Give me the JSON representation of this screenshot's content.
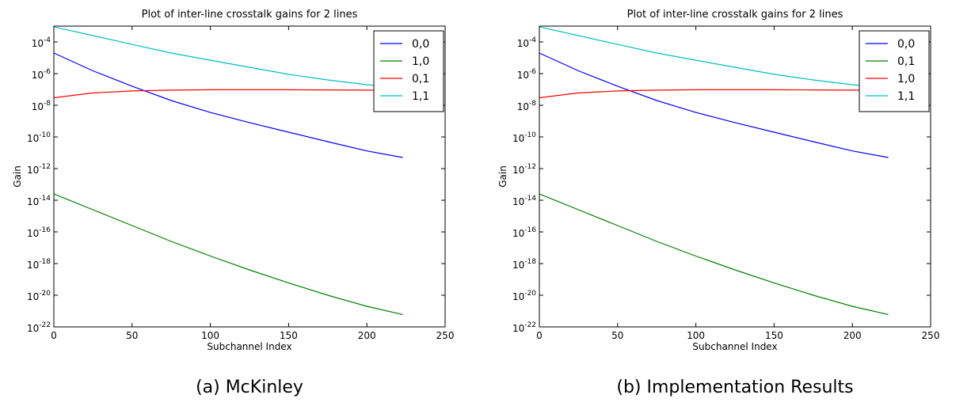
{
  "chart_data": [
    {
      "type": "line",
      "title": "Plot of inter-line crosstalk gains for 2 lines",
      "xlabel": "Subchannel Index",
      "ylabel": "Gain",
      "caption": "(a) McKinley",
      "xlim": [
        0,
        250
      ],
      "ylim": [
        1e-22,
        0.001
      ],
      "yscale": "log",
      "xticks": [
        0,
        50,
        100,
        150,
        200,
        250
      ],
      "yticks": [
        {
          "value": 0.0001,
          "base": "10",
          "exp": "-4"
        },
        {
          "value": 1e-06,
          "base": "10",
          "exp": "-6"
        },
        {
          "value": 1e-08,
          "base": "10",
          "exp": "-8"
        },
        {
          "value": 1e-10,
          "base": "10",
          "exp": "-10"
        },
        {
          "value": 1e-12,
          "base": "10",
          "exp": "-12"
        },
        {
          "value": 1e-14,
          "base": "10",
          "exp": "-14"
        },
        {
          "value": 1e-16,
          "base": "10",
          "exp": "-16"
        },
        {
          "value": 1e-18,
          "base": "10",
          "exp": "-18"
        },
        {
          "value": 1e-20,
          "base": "10",
          "exp": "-20"
        },
        {
          "value": 1e-22,
          "base": "10",
          "exp": "-22"
        }
      ],
      "legend": "top-right",
      "grid": false,
      "x": [
        0,
        25,
        50,
        75,
        100,
        125,
        150,
        175,
        200,
        223
      ],
      "series": [
        {
          "name": "0,0",
          "color": "#0000ff",
          "values": [
            2e-05,
            1.5e-06,
            1.6e-07,
            2e-08,
            3.5e-09,
            8e-10,
            2e-10,
            5e-11,
            1.3e-11,
            5e-12
          ]
        },
        {
          "name": "1,0",
          "color": "#008000",
          "values": [
            2.5e-14,
            2.5e-15,
            2.5e-16,
            2.5e-17,
            3e-18,
            4e-19,
            6e-20,
            1e-20,
            2e-21,
            6e-22
          ]
        },
        {
          "name": "0,1",
          "color": "#ff0000",
          "values": [
            3e-08,
            6e-08,
            8e-08,
            9e-08,
            9.5e-08,
            9.6e-08,
            9.5e-08,
            9.3e-08,
            9e-08,
            8.8e-08
          ]
        },
        {
          "name": "1,1",
          "color": "#00bfbf",
          "values": [
            0.0009,
            0.00025,
            7e-05,
            2e-05,
            7e-06,
            2.5e-06,
            9e-07,
            4e-07,
            2e-07,
            1.3e-07
          ]
        }
      ]
    },
    {
      "type": "line",
      "title": "Plot of inter-line crosstalk gains for 2 lines",
      "xlabel": "Subchannel Index",
      "ylabel": "Gain",
      "caption": "(b) Implementation Results",
      "xlim": [
        0,
        250
      ],
      "ylim": [
        1e-22,
        0.001
      ],
      "yscale": "log",
      "xticks": [
        0,
        50,
        100,
        150,
        200,
        250
      ],
      "yticks": [
        {
          "value": 0.0001,
          "base": "10",
          "exp": "-4"
        },
        {
          "value": 1e-06,
          "base": "10",
          "exp": "-6"
        },
        {
          "value": 1e-08,
          "base": "10",
          "exp": "-8"
        },
        {
          "value": 1e-10,
          "base": "10",
          "exp": "-10"
        },
        {
          "value": 1e-12,
          "base": "10",
          "exp": "-12"
        },
        {
          "value": 1e-14,
          "base": "10",
          "exp": "-14"
        },
        {
          "value": 1e-16,
          "base": "10",
          "exp": "-16"
        },
        {
          "value": 1e-18,
          "base": "10",
          "exp": "-18"
        },
        {
          "value": 1e-20,
          "base": "10",
          "exp": "-20"
        },
        {
          "value": 1e-22,
          "base": "10",
          "exp": "-22"
        }
      ],
      "legend": "top-right",
      "grid": false,
      "x": [
        0,
        25,
        50,
        75,
        100,
        125,
        150,
        175,
        200,
        223
      ],
      "series": [
        {
          "name": "0,0",
          "color": "#0000ff",
          "values": [
            2e-05,
            1.5e-06,
            1.6e-07,
            2e-08,
            3.5e-09,
            8e-10,
            2e-10,
            5e-11,
            1.3e-11,
            5e-12
          ]
        },
        {
          "name": "0,1",
          "color": "#008000",
          "values": [
            2.5e-14,
            2.5e-15,
            2.5e-16,
            2.5e-17,
            3e-18,
            4e-19,
            6e-20,
            1e-20,
            2e-21,
            6e-22
          ]
        },
        {
          "name": "1,0",
          "color": "#ff0000",
          "values": [
            3e-08,
            6e-08,
            8e-08,
            9e-08,
            9.5e-08,
            9.6e-08,
            9.5e-08,
            9.3e-08,
            9e-08,
            8.8e-08
          ]
        },
        {
          "name": "1,1",
          "color": "#00bfbf",
          "values": [
            0.0009,
            0.00025,
            7e-05,
            2e-05,
            7e-06,
            2.5e-06,
            9e-07,
            4e-07,
            2e-07,
            1.3e-07
          ]
        }
      ]
    }
  ]
}
